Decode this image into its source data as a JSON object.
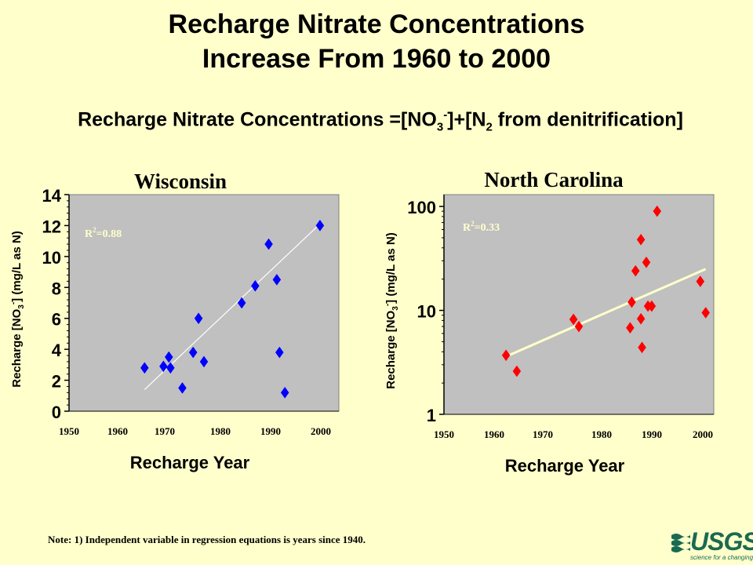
{
  "title": {
    "line1": "Recharge Nitrate Concentrations",
    "line2": "Increase From 1960 to 2000"
  },
  "formula": {
    "prefix": "Recharge Nitrate Concentrations =[NO",
    "sub1": "3",
    "sup1": "-",
    "middle": "]+[N",
    "sub2": "2",
    "suffix": " from denitrification]"
  },
  "note": "Note: 1) Independent variable in regression equations is years since 1940.",
  "logo": {
    "text": "USGS",
    "tagline": "science for a changing world"
  },
  "colors": {
    "background": "#ffffcc",
    "plot_area": "#c0c0c0",
    "wisconsin_marker": "#0000ff",
    "north_carolina_marker": "#ff0000",
    "r2_text": "#ffffcc",
    "trend_line": "#ffffff",
    "trend_line_nc": "#ffffcc"
  },
  "chart_data": [
    {
      "type": "scatter",
      "title": "Wisconsin",
      "xlabel": "Recharge Year",
      "ylabel_parts": {
        "pre": "Recharge [NO",
        "sub": "3",
        "sup": "-",
        "post": "] (mg/L as N)"
      },
      "xlim": [
        1950,
        2000
      ],
      "ylim": [
        0,
        14
      ],
      "yscale": "linear",
      "xticks": [
        "1950",
        "1960",
        "1970",
        "1980",
        "1990",
        "2000"
      ],
      "yticks": [
        "0",
        "2",
        "4",
        "6",
        "8",
        "10",
        "12",
        "14"
      ],
      "annotation": {
        "pre": "R",
        "sup": "2",
        "post": "=0.88"
      },
      "marker": "diamond",
      "points": [
        [
          1964,
          2.8
        ],
        [
          1967.5,
          2.9
        ],
        [
          1968.5,
          3.5
        ],
        [
          1968.8,
          2.8
        ],
        [
          1971,
          1.5
        ],
        [
          1973,
          3.8
        ],
        [
          1974,
          6.0
        ],
        [
          1975,
          3.2
        ],
        [
          1982,
          7.0
        ],
        [
          1984.5,
          8.1
        ],
        [
          1987,
          10.8
        ],
        [
          1988.5,
          8.5
        ],
        [
          1989,
          3.8
        ],
        [
          1990,
          1.2
        ],
        [
          1996.5,
          12.0
        ]
      ],
      "trend": [
        [
          1964,
          1.4
        ],
        [
          1996.5,
          12.1
        ]
      ]
    },
    {
      "type": "scatter",
      "title": "North Carolina",
      "xlabel": "Recharge Year",
      "ylabel_parts": {
        "pre": "Recharge [NO",
        "sub": "3",
        "sup": "-",
        "post": "] (mg/L as N)"
      },
      "xlim": [
        1950,
        2000
      ],
      "ylim": [
        1,
        130
      ],
      "yscale": "log",
      "xticks": [
        "1950",
        "1960",
        "1970",
        "1980",
        "1990",
        "2000"
      ],
      "ytick_values": [
        1,
        10,
        100
      ],
      "yticks": [
        "1",
        "10",
        "100"
      ],
      "annotation": {
        "pre": "R",
        "sup": "2",
        "post": "=0.33"
      },
      "marker": "diamond",
      "points": [
        [
          1961.5,
          3.7
        ],
        [
          1963.5,
          2.6
        ],
        [
          1974,
          8.2
        ],
        [
          1975,
          7.0
        ],
        [
          1984.5,
          6.8
        ],
        [
          1984.8,
          12.0
        ],
        [
          1985.5,
          24.0
        ],
        [
          1986.5,
          48.0
        ],
        [
          1986.5,
          8.3
        ],
        [
          1986.7,
          4.4
        ],
        [
          1987.5,
          29.0
        ],
        [
          1987.8,
          11.0
        ],
        [
          1988.5,
          11.0
        ],
        [
          1989.5,
          90.0
        ],
        [
          1997.5,
          19.0
        ],
        [
          1998.5,
          9.5
        ]
      ],
      "trend": [
        [
          1961.5,
          3.6
        ],
        [
          1998.5,
          25.0
        ]
      ]
    }
  ]
}
